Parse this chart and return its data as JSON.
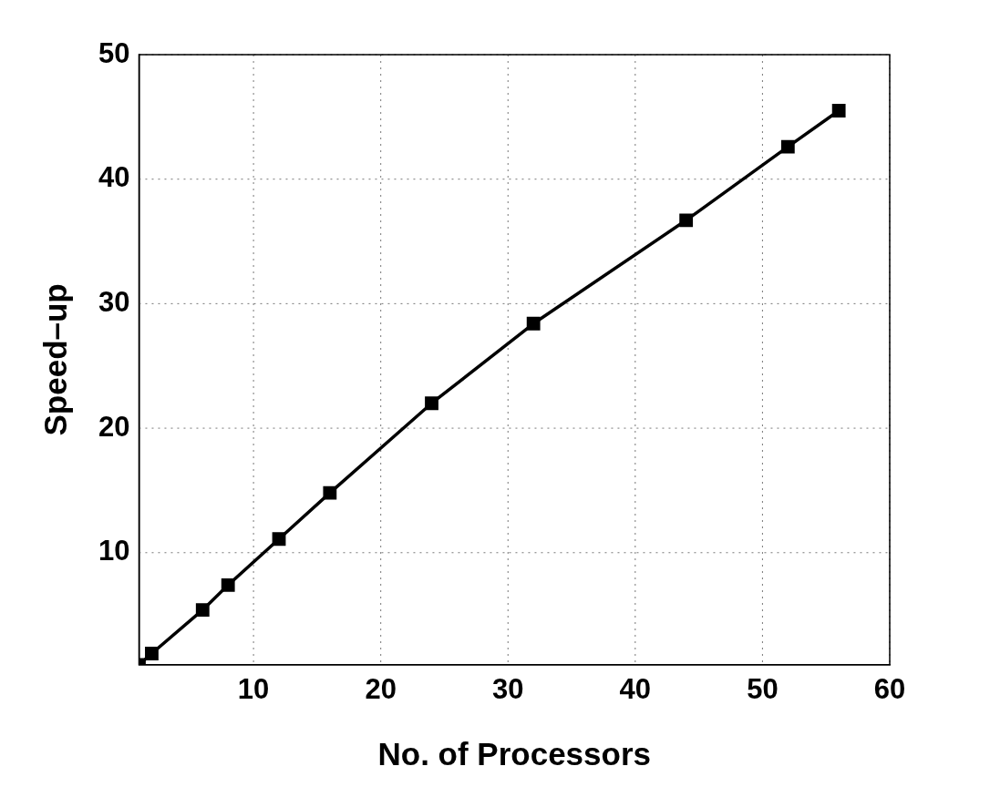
{
  "chart_data": {
    "type": "line",
    "xlabel": "No. of Processors",
    "ylabel": "Speed–up",
    "x": [
      1,
      2,
      6,
      8,
      12,
      16,
      24,
      32,
      44,
      52,
      56
    ],
    "series": [
      {
        "color": "#000000",
        "values": [
          1,
          1.9,
          5.4,
          7.4,
          11.1,
          14.8,
          22.0,
          28.4,
          36.7,
          42.6,
          45.5
        ]
      }
    ],
    "xlim": [
      1,
      60
    ],
    "xticks": [
      10,
      20,
      30,
      40,
      50,
      60
    ],
    "ylim": [
      1,
      50
    ],
    "yticks": [
      10,
      20,
      30,
      40,
      50
    ],
    "grid": true,
    "legend": false,
    "marker": "square",
    "line_style": "solid"
  }
}
